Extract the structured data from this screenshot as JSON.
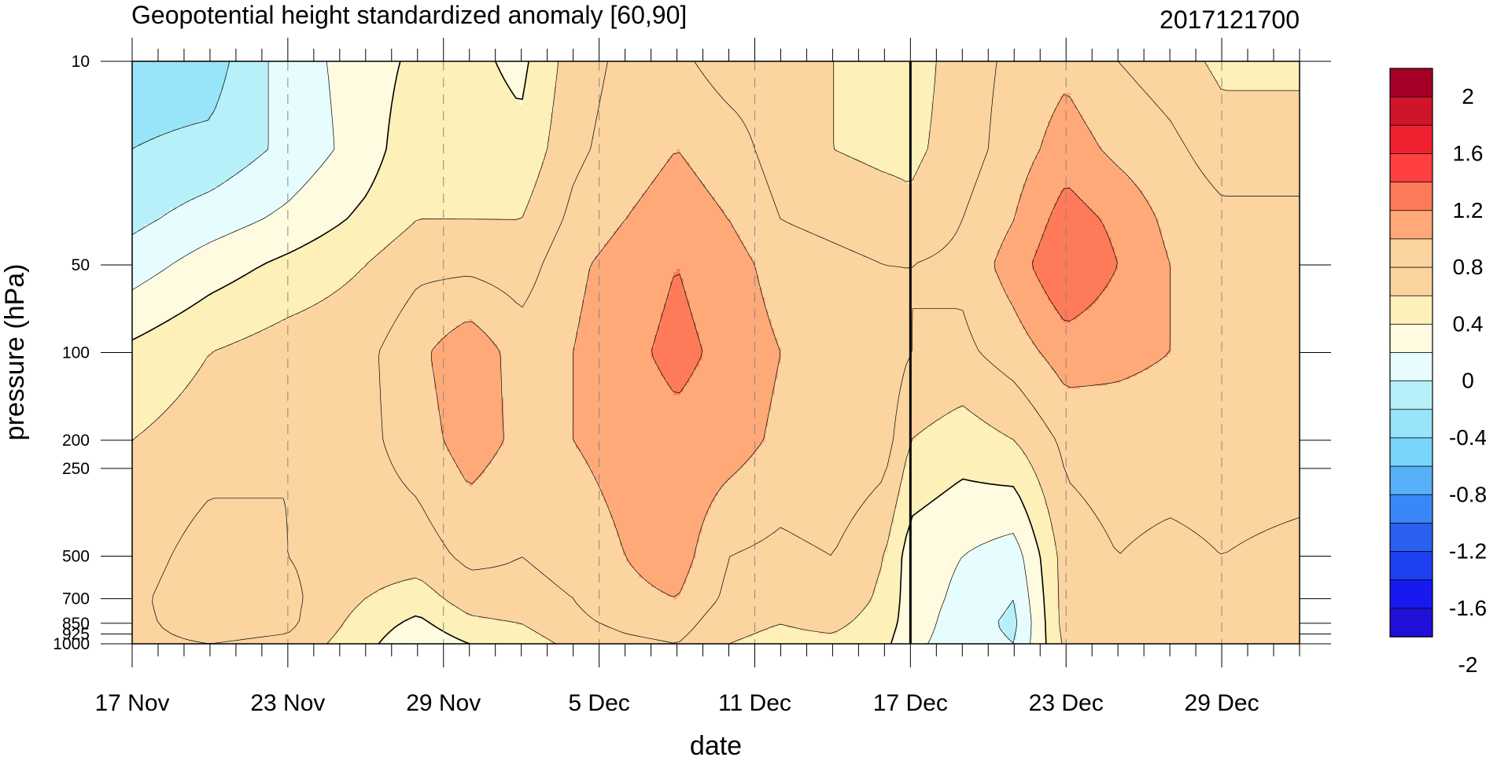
{
  "chart_data": {
    "type": "heatmap",
    "title": "Geopotential height standardized anomaly [60,90]",
    "date_stamp": "2017121700",
    "xlabel": "date",
    "ylabel": "pressure (hPa)",
    "x_ticks": [
      "17 Nov",
      "23 Nov",
      "29 Nov",
      "5 Dec",
      "11 Dec",
      "17 Dec",
      "23 Dec",
      "29 Dec"
    ],
    "x_tick_days": [
      0,
      6,
      12,
      18,
      24,
      30,
      36,
      42
    ],
    "x_range_days": [
      0,
      45
    ],
    "current_date_day": 30,
    "y_ticks": [
      10,
      50,
      100,
      200,
      250,
      500,
      700,
      850,
      925,
      1000
    ],
    "y_tick_labels": [
      "10",
      "50",
      "100",
      "200",
      "250",
      "500",
      "700",
      "850",
      "925",
      "1000"
    ],
    "ylim": [
      1000,
      10
    ],
    "y_scale": "log",
    "colorbar": {
      "labels": [
        "2",
        "1.6",
        "1.2",
        "0.8",
        "0.4",
        "0",
        "-0.4",
        "-0.8",
        "-1.2",
        "-1.6",
        "-2"
      ],
      "colors": [
        "#a50026",
        "#d0142a",
        "#f02030",
        "#ff4040",
        "#ff7a58",
        "#ffa878",
        "#fcd4a0",
        "#fcd4a0",
        "#fdf0b8",
        "#fffbe0",
        "#e6fcff",
        "#b8f0fa",
        "#98e4f8",
        "#78d4f8",
        "#58b0f8",
        "#3a88f8",
        "#2a60f0",
        "#1e40f0",
        "#1818f0",
        "#2010d8"
      ]
    },
    "levels": [
      -2.2,
      -2.0,
      -1.8,
      -1.6,
      -1.4,
      -1.2,
      -1.0,
      -0.8,
      -0.6,
      -0.4,
      -0.2,
      0.0,
      0.2,
      0.4,
      0.6,
      0.8,
      1.0,
      1.2,
      1.4,
      1.6,
      1.8,
      2.0,
      2.2
    ],
    "fill_colors": [
      "#2010d8",
      "#1818f0",
      "#1e40f0",
      "#2a60f0",
      "#3a88f8",
      "#58b0f8",
      "#78d4f8",
      "#98e4f8",
      "#b8f0fa",
      "#e6fcff",
      "#fffbe0",
      "#fdf0b8",
      "#fcd4a0",
      "#fcd4a0",
      "#ffa878",
      "#ff7a58",
      "#ff4040",
      "#f02030",
      "#d0142a",
      "#a50026"
    ],
    "anomaly_grid": {
      "days": [
        0,
        3,
        6,
        9,
        11,
        13,
        15,
        17,
        19,
        21,
        23,
        25,
        27,
        29,
        30,
        32,
        34,
        36,
        38,
        40,
        42,
        45
      ],
      "pressures": [
        10,
        20,
        35,
        50,
        100,
        200,
        500,
        700,
        850,
        1000
      ],
      "values": [
        [
          -0.7,
          -0.7,
          -0.3,
          -0.1,
          0.05,
          0.05,
          -0.05,
          0.3,
          0.45,
          0.45,
          0.3,
          0.3,
          0.2,
          0.15,
          0.1,
          0.3,
          0.45,
          0.55,
          0.4,
          0.3,
          0.15,
          0.15
        ],
        [
          -0.6,
          -0.55,
          -0.35,
          -0.1,
          0.15,
          0.1,
          0.05,
          0.35,
          0.5,
          0.6,
          0.5,
          0.3,
          0.2,
          0.15,
          0.15,
          0.3,
          0.5,
          0.7,
          0.55,
          0.45,
          0.3,
          0.3
        ],
        [
          -0.45,
          -0.3,
          -0.15,
          0.05,
          0.2,
          0.2,
          0.2,
          0.45,
          0.6,
          0.7,
          0.6,
          0.4,
          0.35,
          0.3,
          0.25,
          0.4,
          0.6,
          0.9,
          0.75,
          0.55,
          0.45,
          0.45
        ],
        [
          -0.3,
          -0.1,
          0.05,
          0.2,
          0.35,
          0.35,
          0.3,
          0.55,
          0.7,
          0.8,
          0.7,
          0.5,
          0.45,
          0.4,
          0.4,
          0.45,
          0.7,
          1.0,
          0.8,
          0.6,
          0.5,
          0.5
        ],
        [
          0.05,
          0.2,
          0.3,
          0.35,
          0.55,
          0.75,
          0.5,
          0.6,
          0.75,
          0.85,
          0.75,
          0.6,
          0.6,
          0.55,
          0.4,
          0.35,
          0.5,
          0.7,
          0.65,
          0.6,
          0.55,
          0.55
        ],
        [
          0.2,
          0.3,
          0.4,
          0.35,
          0.5,
          0.7,
          0.55,
          0.6,
          0.7,
          0.75,
          0.7,
          0.55,
          0.6,
          0.5,
          0.2,
          0.1,
          0.2,
          0.45,
          0.5,
          0.5,
          0.5,
          0.5
        ],
        [
          0.3,
          0.5,
          0.4,
          0.3,
          0.3,
          0.45,
          0.4,
          0.45,
          0.6,
          0.7,
          0.4,
          0.35,
          0.4,
          0.2,
          -0.1,
          -0.2,
          -0.3,
          0.3,
          0.4,
          0.35,
          0.4,
          0.35
        ],
        [
          0.35,
          0.55,
          0.45,
          0.2,
          0.1,
          0.3,
          0.35,
          0.4,
          0.55,
          0.6,
          0.35,
          0.3,
          0.35,
          0.15,
          -0.1,
          -0.25,
          -0.4,
          0.3,
          0.35,
          0.35,
          0.3,
          0.3
        ],
        [
          0.35,
          0.5,
          0.45,
          0.1,
          -0.05,
          0.15,
          0.2,
          0.35,
          0.45,
          0.5,
          0.25,
          0.2,
          0.25,
          0.1,
          -0.1,
          -0.3,
          -0.45,
          0.3,
          0.3,
          0.3,
          0.3,
          0.3
        ],
        [
          0.35,
          0.4,
          0.35,
          0.05,
          -0.15,
          0.0,
          0.1,
          0.25,
          0.35,
          0.4,
          0.2,
          0.15,
          0.15,
          0.05,
          -0.15,
          -0.3,
          -0.4,
          0.25,
          0.3,
          0.3,
          0.3,
          0.3
        ]
      ]
    }
  }
}
